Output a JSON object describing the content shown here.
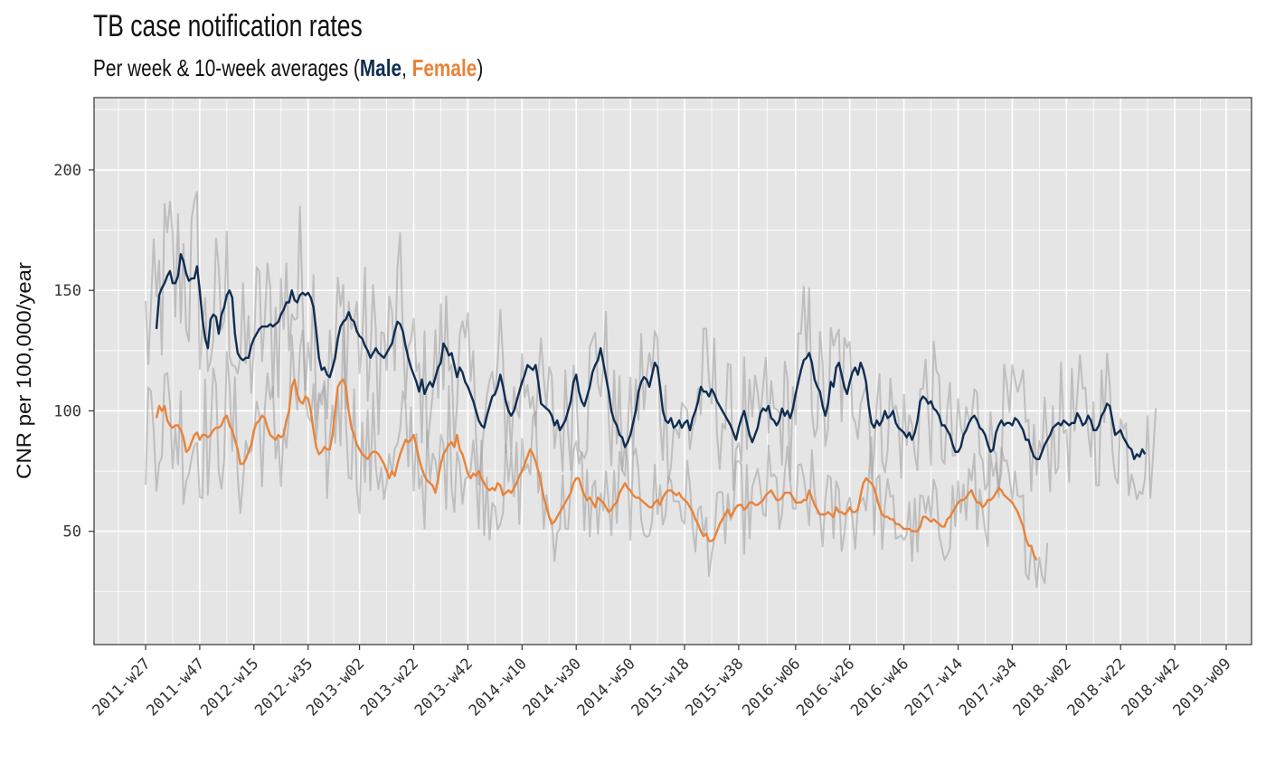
{
  "title": "TB case notification rates",
  "subtitle": {
    "prefix": "Per week & 10-week averages (",
    "male": "Male",
    "sep": ", ",
    "female": "Female",
    "suffix": ")"
  },
  "chart_data": {
    "type": "line",
    "ylabel": "CNR per 100,000/year",
    "xlabel": "",
    "ylim": [
      3,
      230
    ],
    "yticks": [
      50,
      100,
      150,
      200
    ],
    "grid": true,
    "x_start": "2011-w27",
    "x_end": "2019-w09",
    "xticks": [
      "2011-w27",
      "2011-w47",
      "2012-w15",
      "2012-w35",
      "2013-w02",
      "2013-w22",
      "2013-w42",
      "2014-w10",
      "2014-w30",
      "2014-w50",
      "2015-w18",
      "2015-w38",
      "2016-w06",
      "2016-w26",
      "2016-w46",
      "2017-w14",
      "2017-w34",
      "2018-w02",
      "2018-w22",
      "2018-w42",
      "2019-w09"
    ],
    "colors": {
      "male": "#0f2d52",
      "female": "#e8833a",
      "weekly": "#9e9e9e",
      "panel": "#e5e5e5",
      "grid": "#ffffff"
    },
    "series": [
      {
        "name": "Male",
        "week_start": "2011-w31",
        "values": [
          134,
          148,
          151,
          153,
          156,
          158,
          153,
          153,
          156,
          165,
          162,
          157,
          154,
          155,
          155,
          160,
          150,
          138,
          130,
          126,
          138,
          140,
          139,
          132,
          140,
          143,
          148,
          150,
          147,
          132,
          124,
          122,
          121,
          122,
          122,
          127,
          130,
          132,
          134,
          135,
          135,
          135,
          136,
          135,
          136,
          137,
          140,
          142,
          145,
          145,
          150,
          146,
          145,
          148,
          149,
          148,
          149,
          147,
          143,
          133,
          122,
          117,
          118,
          115,
          114,
          118,
          122,
          130,
          135,
          137,
          138,
          141,
          138,
          137,
          133,
          131,
          130,
          127,
          125,
          122,
          124,
          126,
          124,
          123,
          122,
          124,
          126,
          128,
          133,
          137,
          136,
          133,
          127,
          122,
          118,
          115,
          112,
          108,
          113,
          107,
          110,
          112,
          110,
          114,
          118,
          120,
          128,
          126,
          123,
          124,
          119,
          114,
          118,
          116,
          112,
          110,
          107,
          104,
          100,
          96,
          94,
          93,
          98,
          102,
          106,
          107,
          110,
          115,
          110,
          104,
          100,
          98,
          100,
          104,
          108,
          112,
          115,
          119,
          118,
          117,
          119,
          112,
          103,
          102,
          101,
          100,
          98,
          94,
          96,
          92,
          94,
          96,
          100,
          104,
          112,
          115,
          108,
          104,
          102,
          106,
          110,
          116,
          119,
          121,
          126,
          120,
          114,
          108,
          100,
          96,
          94,
          90,
          89,
          85,
          87,
          90,
          95,
          100,
          108,
          112,
          114,
          113,
          110,
          115,
          120,
          118,
          110,
          100,
          96,
          95,
          97,
          93,
          94,
          96,
          93,
          95,
          96,
          92,
          97,
          100,
          104,
          110,
          108,
          108,
          106,
          109,
          107,
          104,
          102,
          100,
          98,
          96,
          94,
          91,
          88,
          93,
          97,
          100,
          95,
          90,
          87,
          90,
          93,
          99,
          101,
          100,
          102,
          97,
          96,
          94,
          96,
          101,
          98,
          100,
          97,
          101,
          107,
          112,
          117,
          121,
          122,
          124,
          120,
          113,
          110,
          108,
          102,
          98,
          103,
          112,
          110,
          118,
          120,
          115,
          110,
          107,
          112,
          116,
          118,
          115,
          120,
          117,
          112,
          102,
          95,
          93,
          96,
          94,
          96,
          100,
          97,
          98,
          100,
          95,
          93,
          92,
          91,
          89,
          91,
          88,
          91,
          96,
          104,
          106,
          105,
          103,
          104,
          101,
          100,
          98,
          94,
          94,
          92,
          90,
          86,
          83,
          83,
          85,
          90,
          92,
          95,
          97,
          98,
          96,
          93,
          92,
          90,
          86,
          83,
          84,
          91,
          94,
          96,
          94,
          95,
          95,
          94,
          97,
          96,
          94,
          92,
          88,
          88,
          84,
          81,
          80,
          80,
          83,
          86,
          88,
          90,
          93,
          94,
          95,
          94,
          96,
          95,
          94,
          95,
          95,
          99,
          97,
          94,
          95,
          98,
          96,
          92,
          92,
          94,
          98,
          100,
          103,
          102,
          96,
          90,
          91,
          92,
          89,
          87,
          85,
          84,
          80,
          82,
          81,
          84,
          82
        ]
      },
      {
        "name": "Female",
        "week_start": "2011-w31",
        "values": [
          97,
          102,
          100,
          102,
          96,
          94,
          93,
          94,
          94,
          92,
          89,
          83,
          84,
          87,
          90,
          91,
          88,
          90,
          90,
          89,
          90,
          92,
          93,
          93,
          94,
          97,
          98,
          94,
          92,
          88,
          84,
          78,
          78,
          80,
          83,
          86,
          92,
          95,
          96,
          98,
          97,
          93,
          90,
          89,
          88,
          90,
          89,
          90,
          96,
          100,
          110,
          113,
          107,
          104,
          103,
          106,
          105,
          100,
          92,
          85,
          82,
          83,
          85,
          84,
          84,
          90,
          100,
          110,
          112,
          113,
          110,
          100,
          93,
          90,
          86,
          84,
          82,
          81,
          80,
          82,
          83,
          83,
          82,
          80,
          78,
          75,
          72,
          75,
          73,
          78,
          82,
          85,
          88,
          87,
          88,
          90,
          85,
          80,
          76,
          73,
          71,
          70,
          69,
          66,
          72,
          78,
          82,
          84,
          86,
          87,
          85,
          90,
          84,
          82,
          78,
          74,
          72,
          74,
          73,
          75,
          72,
          70,
          68,
          67,
          68,
          67,
          70,
          69,
          65,
          66,
          67,
          66,
          68,
          70,
          73,
          75,
          78,
          81,
          84,
          82,
          79,
          75,
          70,
          64,
          60,
          56,
          53,
          54,
          56,
          58,
          60,
          62,
          64,
          66,
          70,
          72,
          72,
          68,
          65,
          63,
          64,
          62,
          60,
          64,
          63,
          62,
          60,
          58,
          59,
          61,
          62,
          66,
          68,
          70,
          68,
          67,
          65,
          64,
          64,
          63,
          62,
          61,
          60,
          60,
          62,
          63,
          61,
          64,
          66,
          67,
          67,
          66,
          65,
          66,
          64,
          63,
          62,
          60,
          58,
          55,
          53,
          50,
          48,
          49,
          46,
          46,
          47,
          50,
          53,
          55,
          57,
          59,
          56,
          58,
          60,
          61,
          61,
          59,
          60,
          62,
          62,
          61,
          61,
          62,
          63,
          65,
          66,
          67,
          65,
          63,
          63,
          64,
          66,
          66,
          66,
          64,
          62,
          62,
          62,
          63,
          63,
          67,
          64,
          61,
          59,
          57,
          57,
          57,
          58,
          57,
          56,
          60,
          58,
          58,
          57,
          58,
          60,
          58,
          58,
          59,
          65,
          70,
          72,
          71,
          70,
          68,
          64,
          60,
          57,
          56,
          56,
          55,
          55,
          53,
          53,
          52,
          51,
          51,
          51,
          50,
          50,
          50,
          52,
          56,
          56,
          55,
          54,
          55,
          54,
          53,
          52,
          52,
          55,
          56,
          58,
          60,
          62,
          63,
          63,
          64,
          66,
          67,
          64,
          62,
          62,
          60,
          61,
          63,
          63,
          64,
          66,
          68,
          67,
          65,
          64,
          63,
          62,
          60,
          58,
          55,
          52,
          47,
          44,
          44,
          40,
          38
        ]
      }
    ],
    "weekly_note": "Grey lines: raw weekly values per sex (unlabeled)"
  }
}
